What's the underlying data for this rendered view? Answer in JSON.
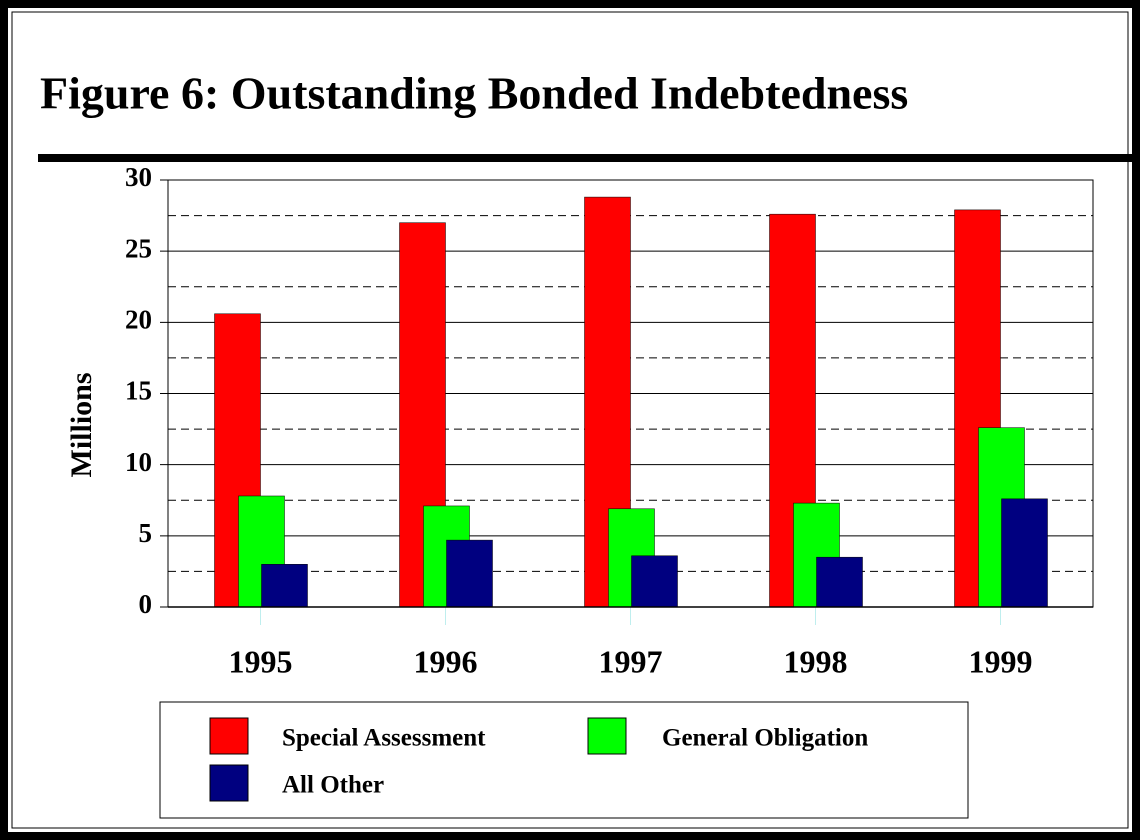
{
  "chart_data": {
    "type": "bar",
    "title": "Figure 6: Outstanding Bonded Indebtedness",
    "y_label": "Millions",
    "categories": [
      "1995",
      "1996",
      "1997",
      "1998",
      "1999"
    ],
    "series": [
      {
        "name": "Special Assessment",
        "color": "#ff0000",
        "values": [
          20.6,
          27.0,
          28.8,
          27.6,
          27.9
        ]
      },
      {
        "name": "General Obligation",
        "color": "#00ff00",
        "values": [
          7.8,
          7.1,
          6.9,
          7.3,
          12.6
        ]
      },
      {
        "name": "All Other",
        "color": "#000080",
        "values": [
          3.0,
          4.7,
          3.6,
          3.5,
          7.6
        ]
      }
    ],
    "ylim": [
      0,
      30
    ],
    "yticks": [
      0,
      5,
      10,
      15,
      20,
      25,
      30
    ],
    "minor_yticks": [
      2.5,
      7.5,
      12.5,
      17.5,
      22.5,
      27.5
    ],
    "grid": true,
    "legend": "bottom"
  }
}
